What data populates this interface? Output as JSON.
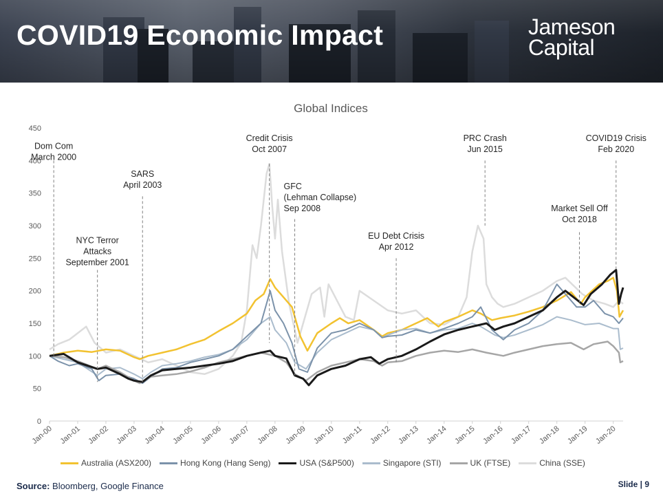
{
  "slide": {
    "title": "COVID19 Economic Impact",
    "logo_line1": "Jameson",
    "logo_line2": "Capital",
    "source_label": "Source:",
    "source_text": " Bloomberg, Google Finance",
    "slide_number": "Slide | 9"
  },
  "chart_data": {
    "type": "line",
    "title": "Global Indices",
    "xlabel": "",
    "ylabel": "",
    "ylim": [
      0,
      450
    ],
    "yticks": [
      0,
      50,
      100,
      150,
      200,
      250,
      300,
      350,
      400,
      450
    ],
    "grid": false,
    "legend_position": "bottom",
    "x_tick_labels": [
      "Jan-00",
      "Jan-01",
      "Jan-02",
      "Jan-03",
      "Jan-04",
      "Jan-05",
      "Jan-06",
      "Jan-07",
      "Jan-08",
      "Jan-09",
      "Jan-10",
      "Jan-11",
      "Jan-12",
      "Jan-13",
      "Jan-14",
      "Jan-15",
      "Jan-16",
      "Jan-17",
      "Jan-18",
      "Jan-19",
      "Jan-20"
    ],
    "x_tick_years": [
      2000,
      2001,
      2002,
      2003,
      2004,
      2005,
      2006,
      2007,
      2008,
      2009,
      2010,
      2011,
      2012,
      2013,
      2014,
      2015,
      2016,
      2017,
      2018,
      2019,
      2020
    ],
    "x_range": [
      2000.0,
      2020.35
    ],
    "series": [
      {
        "name": "Australia (ASX200)",
        "color": "#f2c230",
        "width": 2.5,
        "x": [
          2000.0,
          2000.5,
          2001.0,
          2001.5,
          2002.0,
          2002.5,
          2003.0,
          2003.2,
          2003.5,
          2004.0,
          2004.5,
          2005.0,
          2005.5,
          2006.0,
          2006.5,
          2007.0,
          2007.3,
          2007.6,
          2007.83,
          2008.0,
          2008.3,
          2008.6,
          2008.9,
          2009.15,
          2009.5,
          2010.0,
          2010.3,
          2010.6,
          2011.0,
          2011.5,
          2011.8,
          2012.0,
          2012.5,
          2013.0,
          2013.4,
          2013.8,
          2014.0,
          2014.5,
          2015.0,
          2015.3,
          2015.7,
          2016.0,
          2016.5,
          2017.0,
          2017.5,
          2018.0,
          2018.5,
          2018.85,
          2019.0,
          2019.5,
          2019.8,
          2020.0,
          2020.13,
          2020.22,
          2020.35
        ],
        "y": [
          100,
          105,
          108,
          106,
          110,
          108,
          98,
          95,
          100,
          105,
          110,
          118,
          125,
          138,
          150,
          165,
          185,
          195,
          218,
          205,
          190,
          175,
          130,
          108,
          135,
          150,
          158,
          150,
          155,
          140,
          130,
          135,
          140,
          150,
          158,
          145,
          152,
          160,
          170,
          165,
          155,
          158,
          162,
          168,
          175,
          185,
          198,
          180,
          190,
          210,
          215,
          220,
          200,
          160,
          170
        ]
      },
      {
        "name": "Hong Kong (Hang Seng)",
        "color": "#7b92aa",
        "width": 2,
        "x": [
          2000.0,
          2000.3,
          2000.7,
          2001.0,
          2001.5,
          2001.75,
          2002.0,
          2002.5,
          2003.0,
          2003.3,
          2003.6,
          2004.0,
          2004.5,
          2005.0,
          2005.5,
          2006.0,
          2006.5,
          2007.0,
          2007.5,
          2007.83,
          2008.0,
          2008.3,
          2008.6,
          2008.85,
          2009.15,
          2009.5,
          2010.0,
          2010.5,
          2011.0,
          2011.5,
          2011.8,
          2012.0,
          2012.5,
          2013.0,
          2013.5,
          2014.0,
          2014.5,
          2015.0,
          2015.3,
          2015.7,
          2016.1,
          2016.5,
          2017.0,
          2017.5,
          2018.0,
          2018.3,
          2018.7,
          2019.0,
          2019.3,
          2019.7,
          2020.0,
          2020.2,
          2020.35
        ],
        "y": [
          100,
          92,
          85,
          88,
          80,
          62,
          70,
          72,
          65,
          58,
          68,
          80,
          82,
          90,
          95,
          100,
          110,
          130,
          150,
          200,
          170,
          150,
          120,
          80,
          75,
          112,
          135,
          140,
          150,
          140,
          128,
          130,
          132,
          140,
          135,
          142,
          150,
          160,
          175,
          140,
          125,
          140,
          150,
          170,
          210,
          195,
          175,
          175,
          185,
          165,
          160,
          150,
          158
        ]
      },
      {
        "name": "USA (S&P500)",
        "color": "#1a1a1a",
        "width": 3,
        "x": [
          2000.0,
          2000.5,
          2001.0,
          2001.7,
          2002.0,
          2002.5,
          2002.8,
          2003.0,
          2003.3,
          2003.6,
          2004.0,
          2004.5,
          2005.0,
          2005.5,
          2006.0,
          2006.5,
          2007.0,
          2007.5,
          2007.83,
          2008.0,
          2008.4,
          2008.7,
          2009.0,
          2009.2,
          2009.5,
          2010.0,
          2010.5,
          2011.0,
          2011.4,
          2011.7,
          2012.0,
          2012.5,
          2013.0,
          2013.5,
          2014.0,
          2014.5,
          2015.0,
          2015.5,
          2015.8,
          2016.1,
          2016.5,
          2017.0,
          2017.5,
          2018.0,
          2018.3,
          2018.95,
          2019.2,
          2019.6,
          2019.9,
          2020.1,
          2020.2,
          2020.28,
          2020.35
        ],
        "y": [
          100,
          103,
          90,
          80,
          82,
          72,
          65,
          62,
          60,
          70,
          78,
          80,
          82,
          85,
          88,
          92,
          100,
          105,
          108,
          100,
          96,
          70,
          65,
          55,
          70,
          80,
          85,
          95,
          98,
          88,
          95,
          100,
          110,
          122,
          133,
          140,
          145,
          150,
          140,
          145,
          150,
          160,
          170,
          190,
          200,
          178,
          195,
          210,
          225,
          232,
          180,
          195,
          205
        ]
      },
      {
        "name": "Singapore (STI)",
        "color": "#aabccd",
        "width": 2,
        "x": [
          2000.0,
          2000.5,
          2001.0,
          2001.7,
          2002.0,
          2002.5,
          2003.0,
          2003.3,
          2003.6,
          2004.0,
          2004.5,
          2005.0,
          2005.5,
          2006.0,
          2006.5,
          2007.0,
          2007.5,
          2007.83,
          2008.0,
          2008.4,
          2008.7,
          2009.1,
          2009.5,
          2010.0,
          2010.5,
          2011.0,
          2011.5,
          2011.8,
          2012.0,
          2012.5,
          2013.0,
          2013.5,
          2014.0,
          2014.5,
          2015.0,
          2015.3,
          2015.8,
          2016.1,
          2016.5,
          2017.0,
          2017.5,
          2018.0,
          2018.5,
          2019.0,
          2019.5,
          2020.0,
          2020.18,
          2020.25,
          2020.35
        ],
        "y": [
          100,
          95,
          90,
          70,
          80,
          82,
          72,
          65,
          75,
          85,
          88,
          92,
          98,
          102,
          110,
          125,
          150,
          160,
          140,
          120,
          90,
          80,
          105,
          125,
          135,
          145,
          140,
          128,
          132,
          140,
          142,
          135,
          140,
          142,
          150,
          145,
          132,
          128,
          132,
          140,
          148,
          160,
          155,
          148,
          150,
          142,
          142,
          110,
          112
        ]
      },
      {
        "name": "UK (FTSE)",
        "color": "#a6a6a6",
        "width": 2.5,
        "x": [
          2000.0,
          2000.5,
          2001.0,
          2001.7,
          2002.0,
          2002.5,
          2003.0,
          2003.2,
          2003.6,
          2004.0,
          2004.5,
          2005.0,
          2005.5,
          2006.0,
          2006.5,
          2007.0,
          2007.5,
          2008.0,
          2008.4,
          2008.7,
          2009.1,
          2009.5,
          2010.0,
          2010.5,
          2011.0,
          2011.5,
          2011.8,
          2012.0,
          2012.5,
          2013.0,
          2013.5,
          2014.0,
          2014.5,
          2015.0,
          2015.5,
          2016.1,
          2016.5,
          2017.0,
          2017.5,
          2018.0,
          2018.5,
          2018.95,
          2019.3,
          2019.8,
          2020.0,
          2020.2,
          2020.25,
          2020.35
        ],
        "y": [
          100,
          98,
          92,
          80,
          85,
          75,
          62,
          58,
          68,
          70,
          72,
          76,
          82,
          90,
          95,
          100,
          105,
          100,
          90,
          72,
          62,
          75,
          85,
          90,
          95,
          92,
          85,
          90,
          92,
          100,
          105,
          108,
          106,
          110,
          105,
          100,
          105,
          110,
          115,
          118,
          120,
          110,
          118,
          122,
          115,
          105,
          90,
          92
        ]
      },
      {
        "name": "China (SSE)",
        "color": "#dcdcdc",
        "width": 2.5,
        "x": [
          2000.0,
          2000.3,
          2000.7,
          2001.0,
          2001.3,
          2001.6,
          2002.0,
          2002.5,
          2003.0,
          2003.5,
          2004.0,
          2004.5,
          2005.0,
          2005.5,
          2006.0,
          2006.5,
          2006.8,
          2007.0,
          2007.2,
          2007.35,
          2007.5,
          2007.7,
          2007.8,
          2007.9,
          2008.0,
          2008.1,
          2008.25,
          2008.5,
          2008.8,
          2009.0,
          2009.3,
          2009.6,
          2009.75,
          2009.9,
          2010.2,
          2010.5,
          2010.8,
          2011.0,
          2011.5,
          2012.0,
          2012.5,
          2013.0,
          2013.5,
          2014.0,
          2014.5,
          2014.8,
          2015.0,
          2015.2,
          2015.4,
          2015.5,
          2015.7,
          2015.9,
          2016.1,
          2016.5,
          2017.0,
          2017.5,
          2018.0,
          2018.3,
          2018.9,
          2019.3,
          2019.7,
          2020.0,
          2020.2,
          2020.35
        ],
        "y": [
          110,
          118,
          125,
          135,
          145,
          120,
          105,
          110,
          100,
          90,
          95,
          85,
          75,
          72,
          80,
          100,
          120,
          170,
          270,
          250,
          300,
          380,
          395,
          330,
          280,
          340,
          260,
          180,
          120,
          150,
          195,
          205,
          160,
          210,
          185,
          160,
          155,
          200,
          185,
          170,
          165,
          170,
          150,
          148,
          160,
          190,
          260,
          300,
          280,
          210,
          190,
          180,
          175,
          180,
          190,
          200,
          215,
          220,
          195,
          185,
          180,
          175,
          185,
          180
        ]
      }
    ],
    "events": [
      {
        "id": "dot-com",
        "x": 2000.15,
        "label": "Dom Com\nMarch 2000",
        "label_y": 418,
        "top_y": 400,
        "bottom_y": 100,
        "align": "center",
        "offset": 0
      },
      {
        "id": "nyc-terror",
        "x": 2001.7,
        "label": "NYC Terror\nAttacks\nSeptember 2001",
        "label_y": 273,
        "top_y": 232,
        "bottom_y": 60,
        "align": "center",
        "offset": 0
      },
      {
        "id": "sars",
        "x": 2003.3,
        "label": "SARS\nApril 2003",
        "label_y": 375,
        "top_y": 345,
        "bottom_y": 60,
        "align": "center",
        "offset": 0
      },
      {
        "id": "credit-crisis",
        "x": 2007.8,
        "label": "Credit Crisis\nOct 2007",
        "label_y": 430,
        "top_y": 395,
        "bottom_y": 120,
        "align": "center",
        "offset": 0
      },
      {
        "id": "gfc",
        "x": 2008.7,
        "label": "GFC\n(Lehman Collapse)\nSep 2008",
        "label_y": 356,
        "top_y": 310,
        "bottom_y": 70,
        "align": "left",
        "offset": -16
      },
      {
        "id": "eu-debt",
        "x": 2012.3,
        "label": "EU Debt Crisis\nApr 2012",
        "label_y": 280,
        "top_y": 250,
        "bottom_y": 90,
        "align": "center",
        "offset": 0
      },
      {
        "id": "prc-crash",
        "x": 2015.45,
        "label": "PRC Crash\nJun 2015",
        "label_y": 430,
        "top_y": 400,
        "bottom_y": 300,
        "align": "center",
        "offset": 0
      },
      {
        "id": "market-selloff",
        "x": 2018.8,
        "label": "Market Sell Off\nOct 2018",
        "label_y": 322,
        "top_y": 290,
        "bottom_y": 180,
        "align": "center",
        "offset": 0
      },
      {
        "id": "covid19",
        "x": 2020.1,
        "label": "COVID19 Crisis\nFeb 2020",
        "label_y": 430,
        "top_y": 400,
        "bottom_y": 230,
        "align": "center",
        "offset": 0
      }
    ]
  }
}
